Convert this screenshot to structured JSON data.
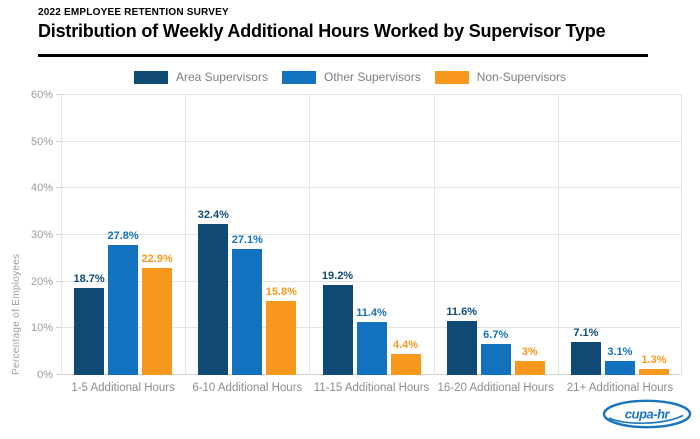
{
  "header": {
    "eyebrow": "2022 EMPLOYEE RETENTION SURVEY",
    "title": "Distribution of Weekly Additional Hours Worked by Supervisor Type"
  },
  "chart_data": {
    "type": "bar",
    "title": "Distribution of Weekly Additional Hours Worked by Supervisor Type",
    "categories": [
      "1-5 Additional Hours",
      "6-10 Additional Hours",
      "11-15 Additional Hours",
      "16-20 Additional Hours",
      "21+ Additional Hours"
    ],
    "series": [
      {
        "name": "Area Supervisors",
        "color": "#0e4a73",
        "values": [
          18.7,
          32.4,
          19.2,
          11.6,
          7.1
        ],
        "labels": [
          "18.7%",
          "32.4%",
          "19.2%",
          "11.6%",
          "7.1%"
        ]
      },
      {
        "name": "Other Supervisors",
        "color": "#1272bd",
        "values": [
          27.8,
          27.1,
          11.4,
          6.7,
          3.1
        ],
        "labels": [
          "27.8%",
          "27.1%",
          "11.4%",
          "6.7%",
          "3.1%"
        ]
      },
      {
        "name": "Non-Supervisors",
        "color": "#f8981d",
        "values": [
          22.9,
          15.8,
          4.4,
          3,
          1.3
        ],
        "labels": [
          "22.9%",
          "15.8%",
          "4.4%",
          "3%",
          "1.3%"
        ]
      }
    ],
    "xlabel": "",
    "ylabel": "Percentage of Employees",
    "ylim": [
      0,
      60
    ],
    "ytick_step": 10,
    "ytick_labels": [
      "0%",
      "10%",
      "20%",
      "30%",
      "40%",
      "50%",
      "60%"
    ],
    "grid": true,
    "legend_position": "top"
  },
  "footer": {
    "logo_text": "cupa-hr",
    "logo_color": "#1b75bc"
  }
}
